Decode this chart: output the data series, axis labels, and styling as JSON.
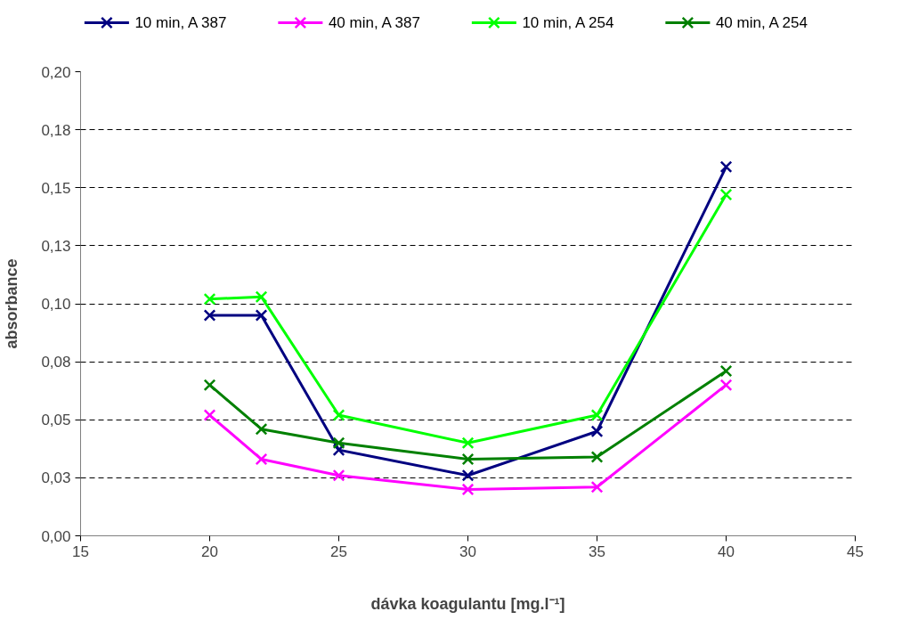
{
  "chart_data": {
    "type": "line",
    "xlabel": "dávka koagulantu [mg.l⁻¹]",
    "ylabel": "absorbance",
    "x": [
      20,
      22,
      25,
      30,
      35,
      40
    ],
    "series": [
      {
        "name": "10 min, A 387",
        "color": "#000080",
        "values": [
          0.095,
          0.095,
          0.037,
          0.026,
          0.045,
          0.159
        ]
      },
      {
        "name": "40 min, A 387",
        "color": "#ff00ff",
        "values": [
          0.052,
          0.033,
          0.026,
          0.02,
          0.021,
          0.065
        ]
      },
      {
        "name": "10 min, A 254",
        "color": "#00ff00",
        "values": [
          0.102,
          0.103,
          0.052,
          0.04,
          0.052,
          0.147
        ]
      },
      {
        "name": "40 min, A 254",
        "color": "#008000",
        "values": [
          0.065,
          0.046,
          0.04,
          0.033,
          0.034,
          0.071
        ]
      }
    ],
    "xlim": [
      15,
      45
    ],
    "xticks": [
      15,
      20,
      25,
      30,
      35,
      40,
      45
    ],
    "ylim": [
      0,
      0.2
    ],
    "yticks": [
      {
        "value": 0,
        "label": "0,00"
      },
      {
        "value": 0.025,
        "label": "0,03"
      },
      {
        "value": 0.05,
        "label": "0,05"
      },
      {
        "value": 0.075,
        "label": "0,08"
      },
      {
        "value": 0.1,
        "label": "0,10"
      },
      {
        "value": 0.125,
        "label": "0,13"
      },
      {
        "value": 0.15,
        "label": "0,15"
      },
      {
        "value": 0.175,
        "label": "0,18"
      },
      {
        "value": 0.2,
        "label": "0,20"
      }
    ],
    "grid": "y",
    "legend": "top",
    "marker": "cross",
    "line_style": "solid"
  }
}
